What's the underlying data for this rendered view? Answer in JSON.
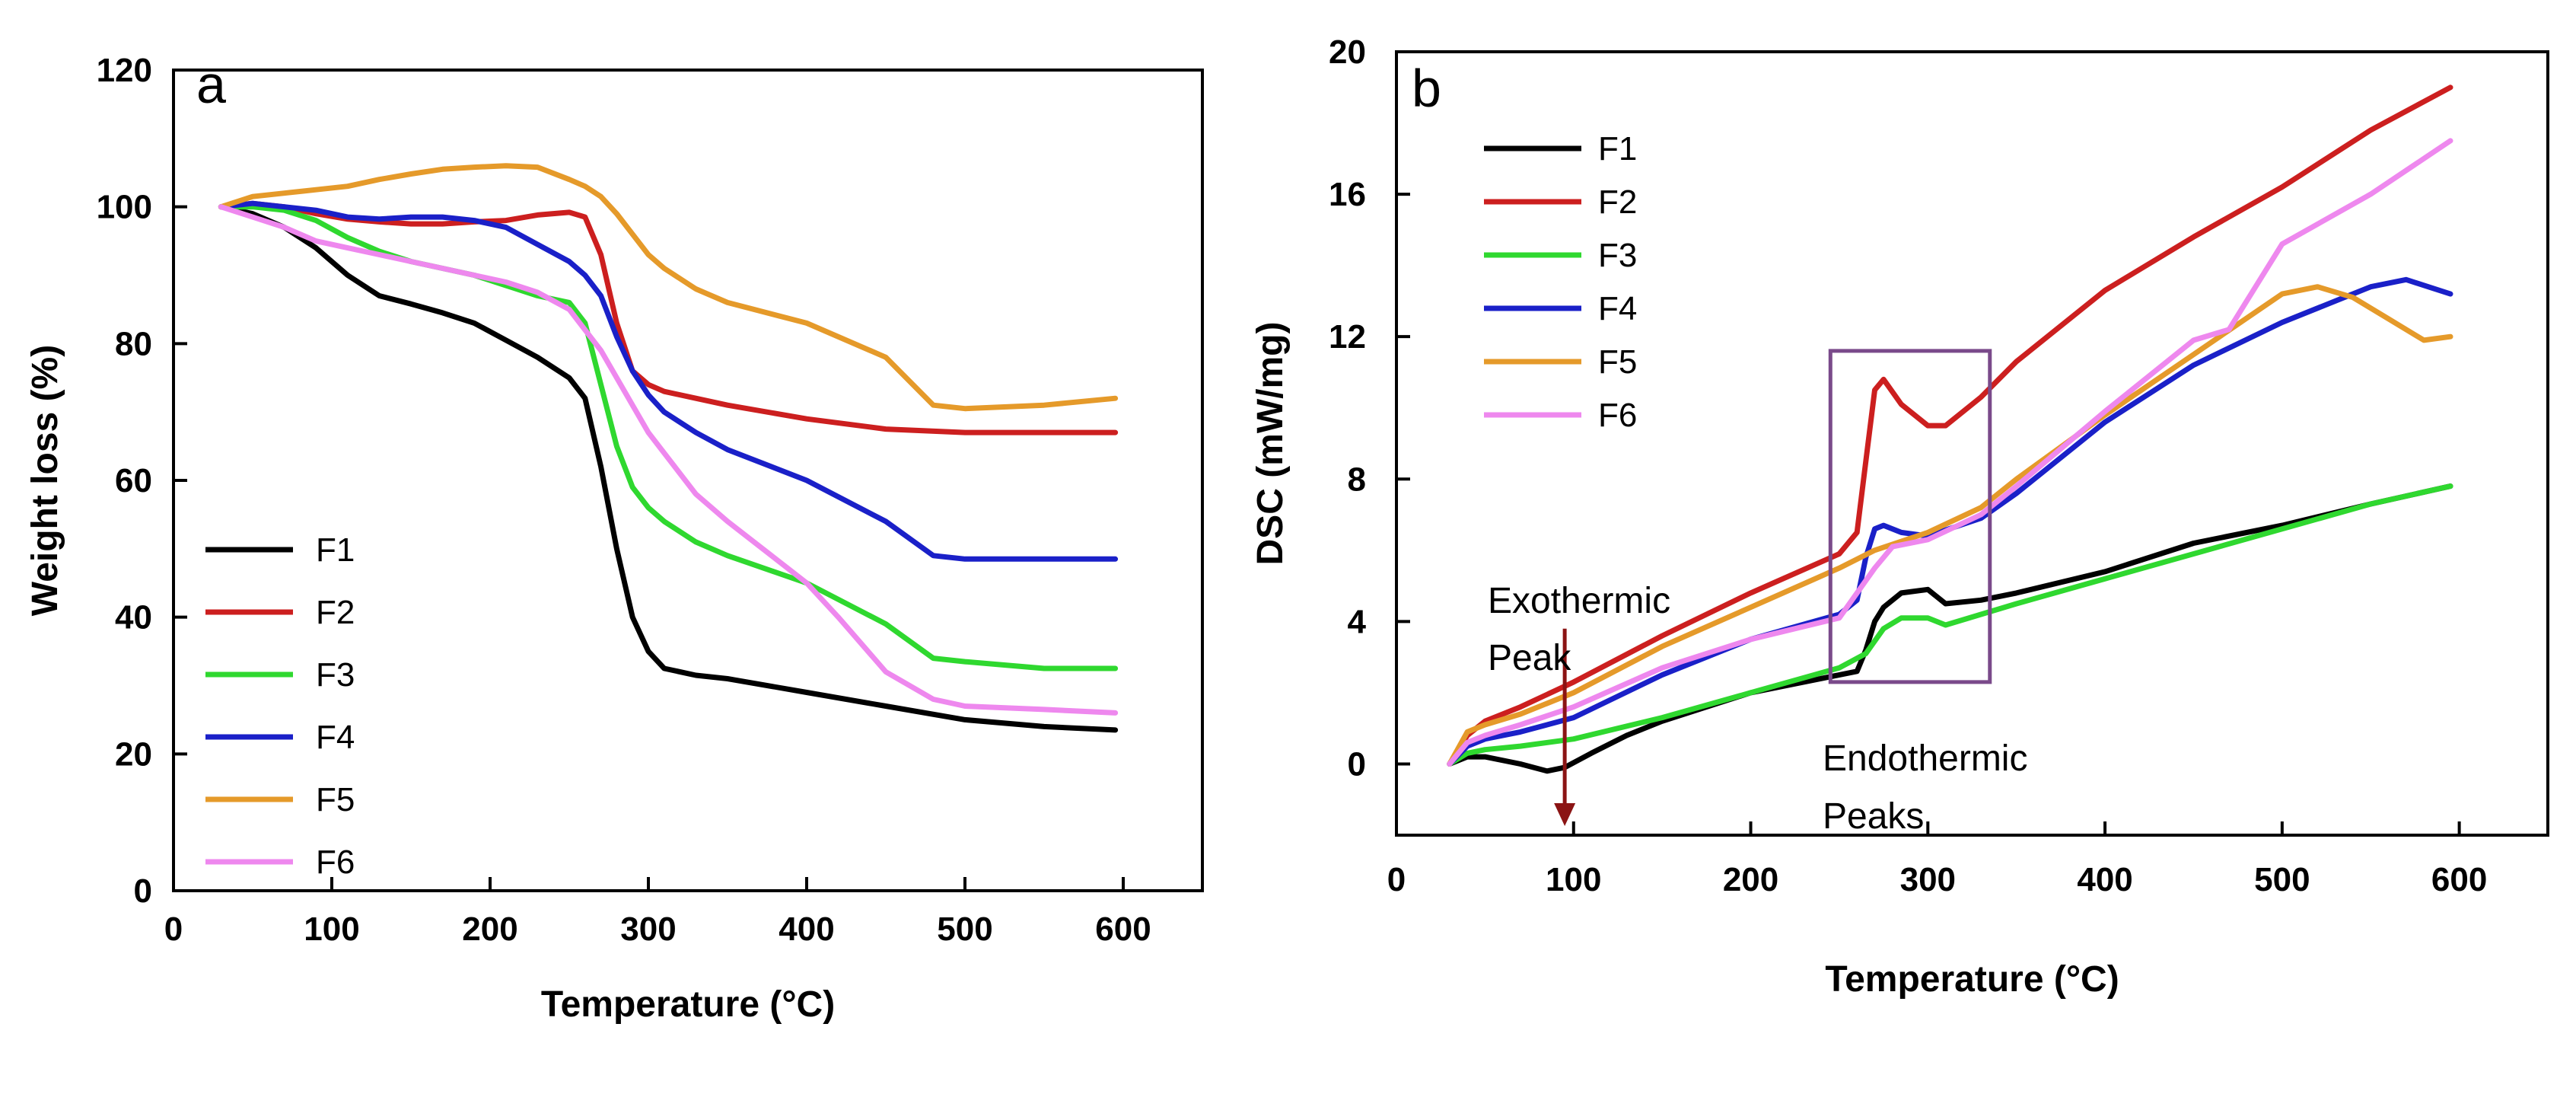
{
  "chart_data": [
    {
      "panel_label": "a",
      "type": "line",
      "xlabel": "Temperature (°C)",
      "ylabel": "Weight loss (%)",
      "xlim": [
        0,
        650
      ],
      "ylim": [
        0,
        120
      ],
      "xticks": [
        0,
        100,
        200,
        300,
        400,
        500,
        600
      ],
      "yticks": [
        0,
        20,
        40,
        60,
        80,
        100,
        120
      ],
      "legend_position": "lower-left",
      "series": [
        {
          "name": "F1",
          "color": "#000000",
          "x": [
            30,
            50,
            70,
            90,
            110,
            130,
            150,
            170,
            190,
            210,
            230,
            250,
            260,
            270,
            280,
            290,
            300,
            310,
            330,
            350,
            400,
            450,
            500,
            550,
            595
          ],
          "y": [
            100,
            99,
            97,
            94,
            90,
            87,
            85.8,
            84.5,
            83,
            80.5,
            78,
            75,
            72,
            62,
            50,
            40,
            35,
            32.5,
            31.5,
            31,
            29,
            27,
            25,
            24,
            23.5
          ]
        },
        {
          "name": "F2",
          "color": "#cc1f1f",
          "x": [
            30,
            50,
            70,
            90,
            110,
            130,
            150,
            170,
            190,
            210,
            230,
            250,
            260,
            270,
            280,
            290,
            300,
            310,
            330,
            350,
            400,
            450,
            500,
            550,
            595
          ],
          "y": [
            100,
            100.5,
            100,
            99,
            98.2,
            97.8,
            97.5,
            97.5,
            97.8,
            98,
            98.8,
            99.2,
            98.5,
            93,
            83,
            76,
            74,
            73,
            72,
            71,
            69,
            67.5,
            67,
            67,
            67
          ]
        },
        {
          "name": "F3",
          "color": "#2fd82f",
          "x": [
            30,
            50,
            70,
            90,
            110,
            130,
            150,
            170,
            190,
            210,
            230,
            250,
            260,
            270,
            280,
            290,
            300,
            310,
            330,
            350,
            400,
            450,
            480,
            500,
            550,
            595
          ],
          "y": [
            100,
            100,
            99.5,
            98,
            95.5,
            93.5,
            92,
            91,
            90,
            88.5,
            87,
            86,
            83,
            74,
            65,
            59,
            56,
            54,
            51,
            49,
            45,
            39,
            34,
            33.5,
            32.5,
            32.5
          ]
        },
        {
          "name": "F4",
          "color": "#1a20c8",
          "x": [
            30,
            50,
            70,
            90,
            110,
            130,
            150,
            170,
            190,
            210,
            230,
            250,
            260,
            270,
            280,
            290,
            300,
            310,
            330,
            350,
            400,
            450,
            480,
            500,
            550,
            595
          ],
          "y": [
            100,
            100.5,
            100,
            99.5,
            98.5,
            98.2,
            98.5,
            98.5,
            98,
            97,
            94.5,
            92,
            90,
            87,
            81,
            76,
            72.5,
            70,
            67,
            64.5,
            60,
            54,
            49,
            48.5,
            48.5,
            48.5
          ]
        },
        {
          "name": "F5",
          "color": "#e59a2a",
          "x": [
            30,
            50,
            70,
            90,
            110,
            130,
            150,
            170,
            190,
            210,
            230,
            250,
            260,
            270,
            280,
            290,
            300,
            310,
            330,
            350,
            400,
            450,
            480,
            500,
            550,
            595
          ],
          "y": [
            100,
            101.5,
            102,
            102.5,
            103,
            104,
            104.8,
            105.5,
            105.8,
            106,
            105.8,
            104,
            103,
            101.5,
            99,
            96,
            93,
            91,
            88,
            86,
            83,
            78,
            71,
            70.5,
            71,
            72
          ]
        },
        {
          "name": "F6",
          "color": "#ee88ee",
          "x": [
            30,
            50,
            70,
            90,
            110,
            130,
            150,
            170,
            190,
            210,
            230,
            250,
            260,
            270,
            280,
            290,
            300,
            310,
            330,
            350,
            400,
            420,
            450,
            480,
            500,
            550,
            595
          ],
          "y": [
            100,
            98.5,
            97,
            95,
            94,
            93,
            92,
            91,
            90,
            89,
            87.5,
            85,
            82,
            79,
            75,
            71,
            67,
            64,
            58,
            54,
            45,
            40,
            32,
            28,
            27,
            26.5,
            26
          ]
        }
      ]
    },
    {
      "panel_label": "b",
      "type": "line",
      "xlabel": "Temperature (°C)",
      "ylabel": "DSC (mW/mg)",
      "xlim": [
        0,
        650
      ],
      "ylim": [
        -2,
        20
      ],
      "xticks": [
        0,
        100,
        200,
        300,
        400,
        500,
        600
      ],
      "yticks": [
        0,
        4,
        8,
        12,
        16,
        20
      ],
      "legend_position": "top-left",
      "annotations": [
        {
          "text": [
            "Exothermic",
            "Peak"
          ],
          "arrow_x": 95,
          "arrow_y_from": 3.8,
          "arrow_y_to": -2
        },
        {
          "text": [
            "Endothermic",
            "Peaks"
          ],
          "box_x": [
            245,
            335
          ],
          "box_y": [
            2.3,
            11.6
          ]
        }
      ],
      "series": [
        {
          "name": "F1",
          "color": "#000000",
          "x": [
            30,
            40,
            50,
            70,
            85,
            95,
            110,
            130,
            150,
            200,
            240,
            260,
            265,
            270,
            275,
            285,
            300,
            310,
            330,
            350,
            400,
            450,
            500,
            550,
            595
          ],
          "y": [
            0,
            0.2,
            0.2,
            0,
            -0.2,
            -0.1,
            0.3,
            0.8,
            1.2,
            2,
            2.4,
            2.6,
            3.2,
            4,
            4.4,
            4.8,
            4.9,
            4.5,
            4.6,
            4.8,
            5.4,
            6.2,
            6.7,
            7.3,
            7.8
          ]
        },
        {
          "name": "F2",
          "color": "#cc1f1f",
          "x": [
            30,
            40,
            50,
            70,
            100,
            150,
            200,
            250,
            260,
            265,
            270,
            275,
            285,
            300,
            310,
            330,
            350,
            400,
            450,
            500,
            550,
            595
          ],
          "y": [
            0,
            0.8,
            1.2,
            1.6,
            2.3,
            3.6,
            4.8,
            5.9,
            6.5,
            8.5,
            10.5,
            10.8,
            10.1,
            9.5,
            9.5,
            10.3,
            11.3,
            13.3,
            14.8,
            16.2,
            17.8,
            19
          ]
        },
        {
          "name": "F3",
          "color": "#2fd82f",
          "x": [
            30,
            40,
            50,
            70,
            100,
            150,
            200,
            250,
            265,
            275,
            285,
            300,
            310,
            330,
            350,
            400,
            450,
            500,
            550,
            595
          ],
          "y": [
            0,
            0.3,
            0.4,
            0.5,
            0.7,
            1.3,
            2,
            2.7,
            3.1,
            3.8,
            4.1,
            4.1,
            3.9,
            4.2,
            4.5,
            5.2,
            5.9,
            6.6,
            7.3,
            7.8
          ]
        },
        {
          "name": "F4",
          "color": "#1a20c8",
          "x": [
            30,
            40,
            50,
            70,
            100,
            150,
            200,
            250,
            260,
            265,
            270,
            275,
            285,
            300,
            330,
            350,
            400,
            450,
            500,
            550,
            570,
            595
          ],
          "y": [
            0,
            0.5,
            0.7,
            0.9,
            1.3,
            2.5,
            3.5,
            4.2,
            4.6,
            5.8,
            6.6,
            6.7,
            6.5,
            6.4,
            6.9,
            7.6,
            9.6,
            11.2,
            12.4,
            13.4,
            13.6,
            13.2
          ]
        },
        {
          "name": "F5",
          "color": "#e59a2a",
          "x": [
            30,
            40,
            50,
            70,
            100,
            150,
            200,
            250,
            270,
            300,
            330,
            350,
            400,
            450,
            500,
            520,
            540,
            560,
            580,
            595
          ],
          "y": [
            0,
            0.9,
            1.1,
            1.4,
            2,
            3.3,
            4.4,
            5.5,
            6,
            6.5,
            7.2,
            8,
            9.8,
            11.5,
            13.2,
            13.4,
            13.1,
            12.5,
            11.9,
            12
          ]
        },
        {
          "name": "F6",
          "color": "#ee88ee",
          "x": [
            30,
            40,
            50,
            70,
            100,
            150,
            200,
            250,
            270,
            280,
            300,
            330,
            350,
            400,
            450,
            470,
            480,
            500,
            550,
            595
          ],
          "y": [
            0,
            0.6,
            0.8,
            1.1,
            1.6,
            2.7,
            3.5,
            4.1,
            5.5,
            6.1,
            6.3,
            7,
            7.8,
            9.9,
            11.9,
            12.2,
            13,
            14.6,
            16,
            17.5
          ]
        }
      ]
    }
  ]
}
